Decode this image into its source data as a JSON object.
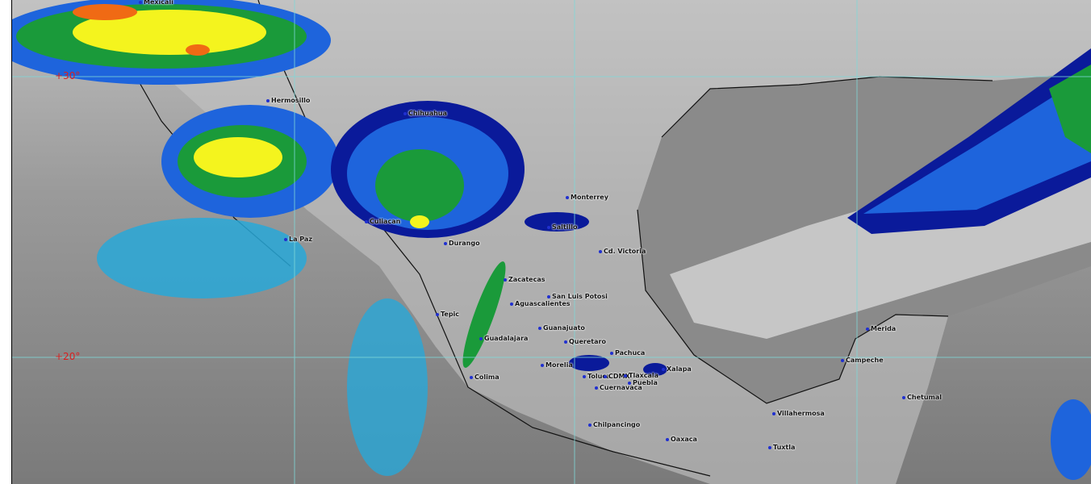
{
  "map": {
    "latitude_labels": [
      "+30°",
      "+20°"
    ],
    "cities": [
      "Mexicali",
      "Hermosillo",
      "Chihuahua",
      "Culiacan",
      "La Paz",
      "Durango",
      "Saltillo",
      "Monterrey",
      "Cd. Victoria",
      "Zacatecas",
      "San Luis Potosi",
      "Aguascalientes",
      "Tepic",
      "Guanajuato",
      "Guadalajara",
      "Queretaro",
      "Pachuca",
      "Morelia",
      "Xalapa",
      "Colima",
      "Toluca",
      "CDMX",
      "Tlaxcala",
      "Puebla",
      "Cuernavaca",
      "Chilpancingo",
      "Oaxaca",
      "Villahermosa",
      "Tuxtla",
      "Campeche",
      "Merida",
      "Chetumal"
    ],
    "colors": {
      "grid": "#7fd8d8",
      "label": "#d82020",
      "cloud_blue": "#1e64dc",
      "cloud_navy": "#0a1a9a",
      "cloud_cyan": "#28a8d8",
      "cloud_green": "#1a9a3a",
      "cloud_yellow": "#f4f41e",
      "cloud_orange": "#f06a14"
    }
  }
}
